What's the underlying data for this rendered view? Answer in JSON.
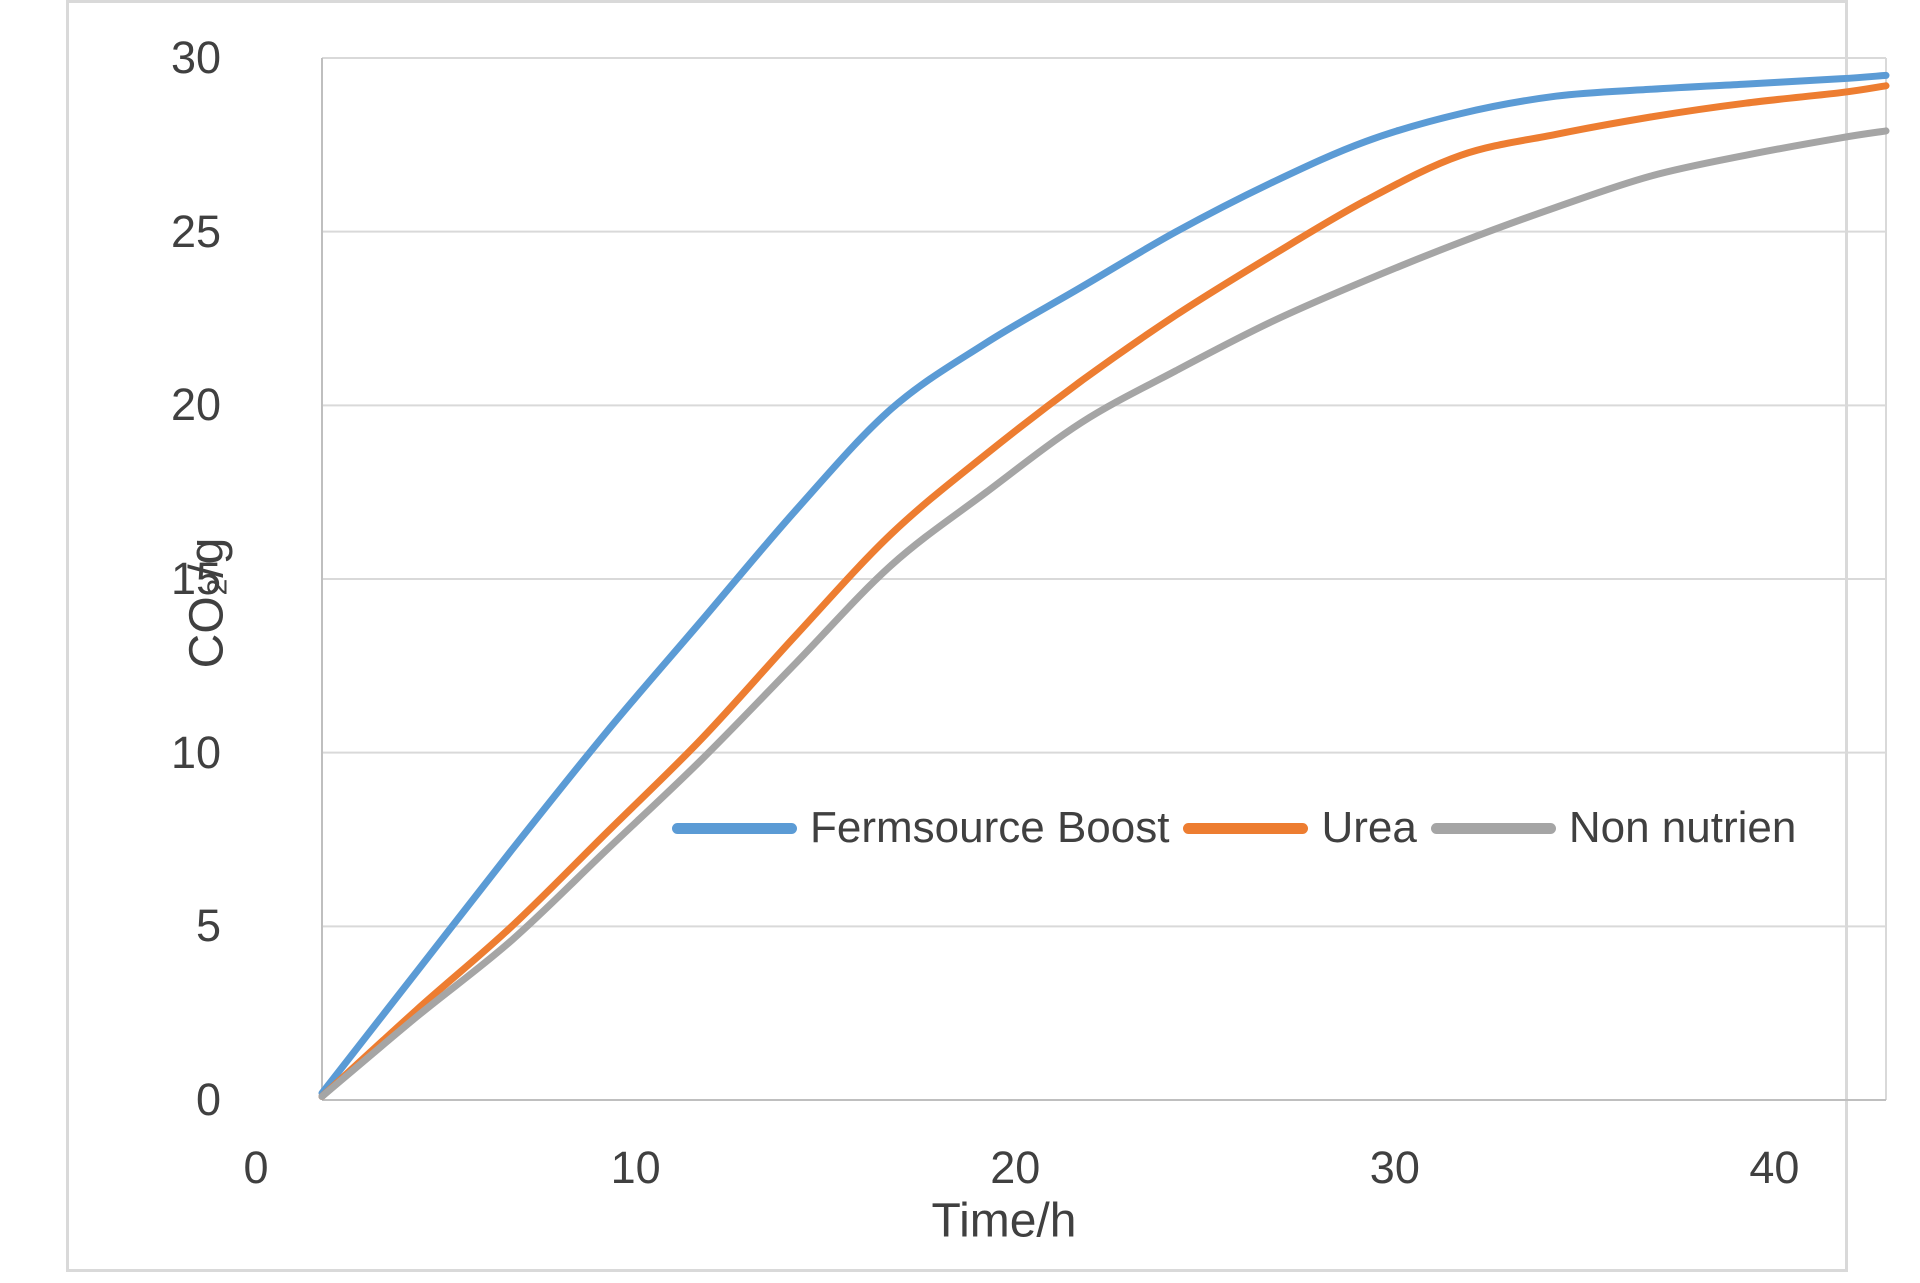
{
  "figure": {
    "background": "#ffffff",
    "border_color": "#d9d9d9"
  },
  "chart_data": {
    "type": "line",
    "title": "",
    "xlabel": "Time/h",
    "ylabel": "CO₂/g",
    "x": [
      0,
      2.5,
      5,
      7.5,
      10,
      12.5,
      15,
      17.5,
      20,
      22.5,
      25,
      27.5,
      30,
      32.5,
      35,
      37.5,
      40,
      41.2
    ],
    "series": [
      {
        "name": "Fermsource Boost",
        "color": "#5b9bd5",
        "values": [
          0.2,
          3.7,
          7.2,
          10.6,
          13.8,
          17.0,
          19.9,
          21.8,
          23.4,
          25.0,
          26.4,
          27.6,
          28.4,
          28.9,
          29.1,
          29.25,
          29.4,
          29.5
        ]
      },
      {
        "name": "Urea",
        "color": "#ed7d31",
        "values": [
          0.1,
          2.6,
          5.0,
          7.7,
          10.4,
          13.4,
          16.3,
          18.6,
          20.7,
          22.6,
          24.3,
          25.9,
          27.2,
          27.8,
          28.3,
          28.7,
          29.0,
          29.2
        ]
      },
      {
        "name": "Non nutrien",
        "color": "#a5a5a5",
        "values": [
          0.1,
          2.4,
          4.6,
          7.2,
          9.8,
          12.6,
          15.4,
          17.5,
          19.5,
          21.0,
          22.4,
          23.6,
          24.7,
          25.7,
          26.6,
          27.2,
          27.7,
          27.9
        ]
      }
    ],
    "x_ticks": [
      0,
      10,
      20,
      30,
      40
    ],
    "y_ticks": [
      0,
      5,
      10,
      15,
      20,
      25,
      30
    ],
    "xlim": [
      0,
      41.2
    ],
    "ylim": [
      0,
      30
    ],
    "grid": "horizontal",
    "legend_position": "inside-center",
    "gridline_color": "#d9d9d9",
    "axis_color": "#bfbfbf",
    "plot_border_color": "#d9d9d9",
    "text_color": "#404040",
    "line_width": 7
  }
}
